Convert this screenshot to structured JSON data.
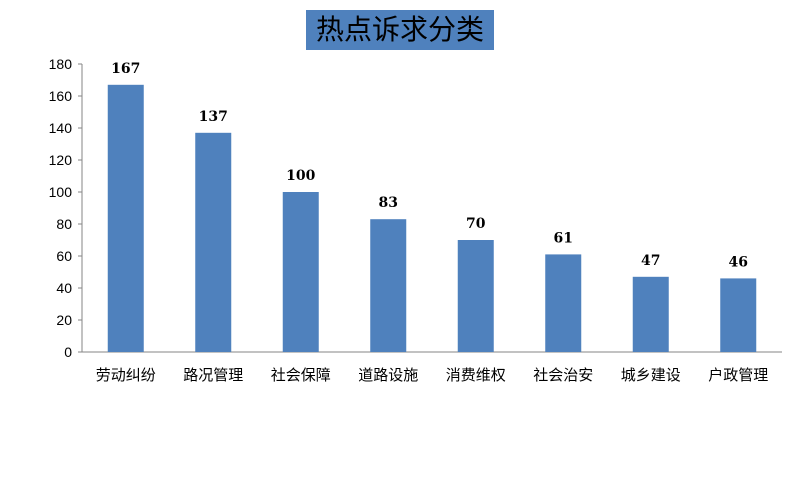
{
  "chart_data": {
    "type": "bar",
    "title": "热点诉求分类",
    "categories": [
      "劳动纠纷",
      "路况管理",
      "社会保障",
      "道路设施",
      "消费维权",
      "社会治安",
      "城乡建设",
      "户政管理"
    ],
    "values": [
      167,
      137,
      100,
      83,
      70,
      61,
      47,
      46
    ],
    "ylim": [
      0,
      180
    ],
    "yticks": [
      0,
      20,
      40,
      60,
      80,
      100,
      120,
      140,
      160,
      180
    ],
    "grid": false,
    "legend": "none",
    "bar_color": "#4f81bd"
  }
}
